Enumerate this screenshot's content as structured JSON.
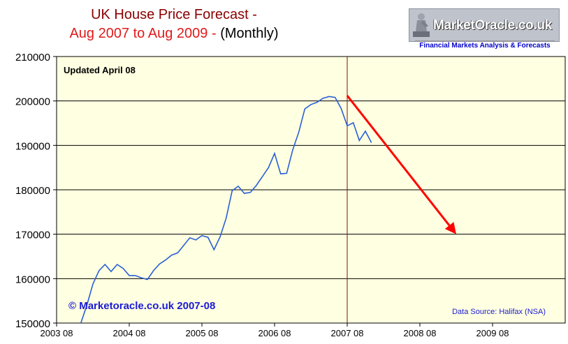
{
  "header": {
    "title_line1": "UK House Price Forecast -",
    "title_line2_part1": "Aug 2007 to Aug 2009 -",
    "title_line2_part2": "(Monthly)"
  },
  "logo": {
    "name": "MarketOracle.co.uk",
    "tagline": "Financial Markets Analysis & Forecasts"
  },
  "chart_data": {
    "type": "line",
    "title": "UK House Price Forecast - Aug 2007 to Aug 2009 - (Monthly)",
    "xlabel": "",
    "ylabel": "",
    "ylim": [
      150000,
      210000
    ],
    "y_ticks": [
      150000,
      160000,
      170000,
      180000,
      190000,
      200000,
      210000
    ],
    "x_ticks": [
      "2003 08",
      "2004 08",
      "2005 08",
      "2006 08",
      "2007 08",
      "2008 08",
      "2009 08"
    ],
    "grid": "horizontal",
    "background": "#ffffe1",
    "annotations": {
      "updated": "Updated April 08",
      "copyright": "© Marketoracle.co.uk 2007-08",
      "source": "Data Source: Halifax (NSA)"
    },
    "series": [
      {
        "color": "#2a5fd6",
        "x": [
          "2003 12",
          "2004 01",
          "2004 02",
          "2004 03",
          "2004 04",
          "2004 05",
          "2004 06",
          "2004 07",
          "2004 08",
          "2004 09",
          "2004 10",
          "2004 11",
          "2004 12",
          "2005 01",
          "2005 02",
          "2005 03",
          "2005 04",
          "2005 05",
          "2005 06",
          "2005 07",
          "2005 08",
          "2005 09",
          "2005 10",
          "2005 11",
          "2005 12",
          "2006 01",
          "2006 02",
          "2006 03",
          "2006 04",
          "2006 05",
          "2006 06",
          "2006 07",
          "2006 08",
          "2006 09",
          "2006 10",
          "2006 11",
          "2006 12",
          "2007 01",
          "2007 02",
          "2007 03",
          "2007 04",
          "2007 05",
          "2007 06",
          "2007 07",
          "2007 08",
          "2007 09",
          "2007 10",
          "2007 11",
          "2007 12",
          "2008 01",
          "2008 02",
          "2008 03"
        ],
        "values": [
          150000,
          154000,
          158800,
          161800,
          163200,
          161600,
          163200,
          162300,
          160700,
          160700,
          160200,
          159800,
          161800,
          163300,
          164200,
          165300,
          165800,
          167500,
          169200,
          168700,
          169700,
          169300,
          166500,
          169400,
          173600,
          179800,
          180800,
          179200,
          179400,
          181000,
          183000,
          185000,
          188200,
          183600,
          183700,
          189000,
          193000,
          198200,
          199200,
          199700,
          200600,
          201000,
          200800,
          198300,
          194400,
          195100,
          191100,
          193200,
          190600,
          null,
          null,
          null
        ]
      },
      {
        "name": "Forecast",
        "color": "#ff0000",
        "x": [
          "2007 08",
          "2009 02"
        ],
        "values": [
          201200,
          170000
        ]
      }
    ],
    "marker_line_at": "2007 08",
    "marker_line_color": "#7b1010"
  }
}
